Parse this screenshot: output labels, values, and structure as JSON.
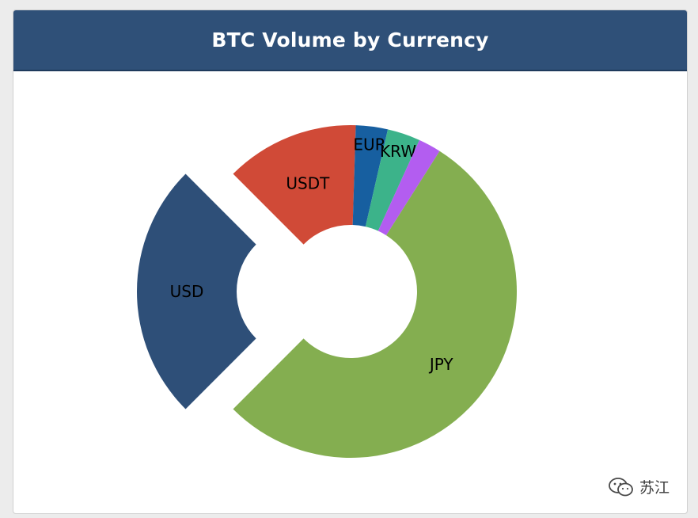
{
  "header": {
    "title": "BTC Volume by Currency"
  },
  "colors": {
    "header_bg": "#2f5078",
    "panel_bg": "#ffffff",
    "page_bg": "#ececec"
  },
  "chart_data": {
    "type": "pie",
    "title": "BTC Volume by Currency",
    "donut": true,
    "start_angle_deg": 225,
    "direction": "clockwise",
    "slices": [
      {
        "label": "USD",
        "value": 25.0,
        "color": "#2e4f78",
        "exploded": true
      },
      {
        "label": "USDT",
        "value": 13.0,
        "color": "#d04a37",
        "exploded": false
      },
      {
        "label": "EUR",
        "value": 3.1,
        "color": "#175fa0",
        "exploded": false
      },
      {
        "label": "KRW",
        "value": 3.2,
        "color": "#3cb38a",
        "exploded": false
      },
      {
        "label": "",
        "value": 2.2,
        "color": "#b35df0",
        "exploded": false
      },
      {
        "label": "JPY",
        "value": 53.5,
        "color": "#84ae50",
        "exploded": false
      }
    ]
  },
  "watermark": {
    "icon": "wechat-icon",
    "text": "苏江"
  }
}
